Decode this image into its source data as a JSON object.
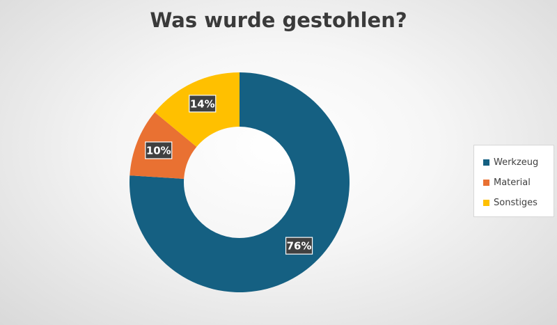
{
  "chart_data": {
    "type": "pie",
    "variant": "donut",
    "title": "Was wurde gestohlen?",
    "categories": [
      "Werkzeug",
      "Material",
      "Sonstiges"
    ],
    "values": [
      76,
      10,
      14
    ],
    "labels": [
      "76%",
      "10%",
      "14%"
    ],
    "colors": [
      "#156082",
      "#E97132",
      "#FFC000"
    ],
    "start_angle_deg": 0,
    "direction": "clockwise",
    "legend": {
      "position": "right",
      "entries": [
        "Werkzeug",
        "Material",
        "Sonstiges"
      ]
    }
  }
}
